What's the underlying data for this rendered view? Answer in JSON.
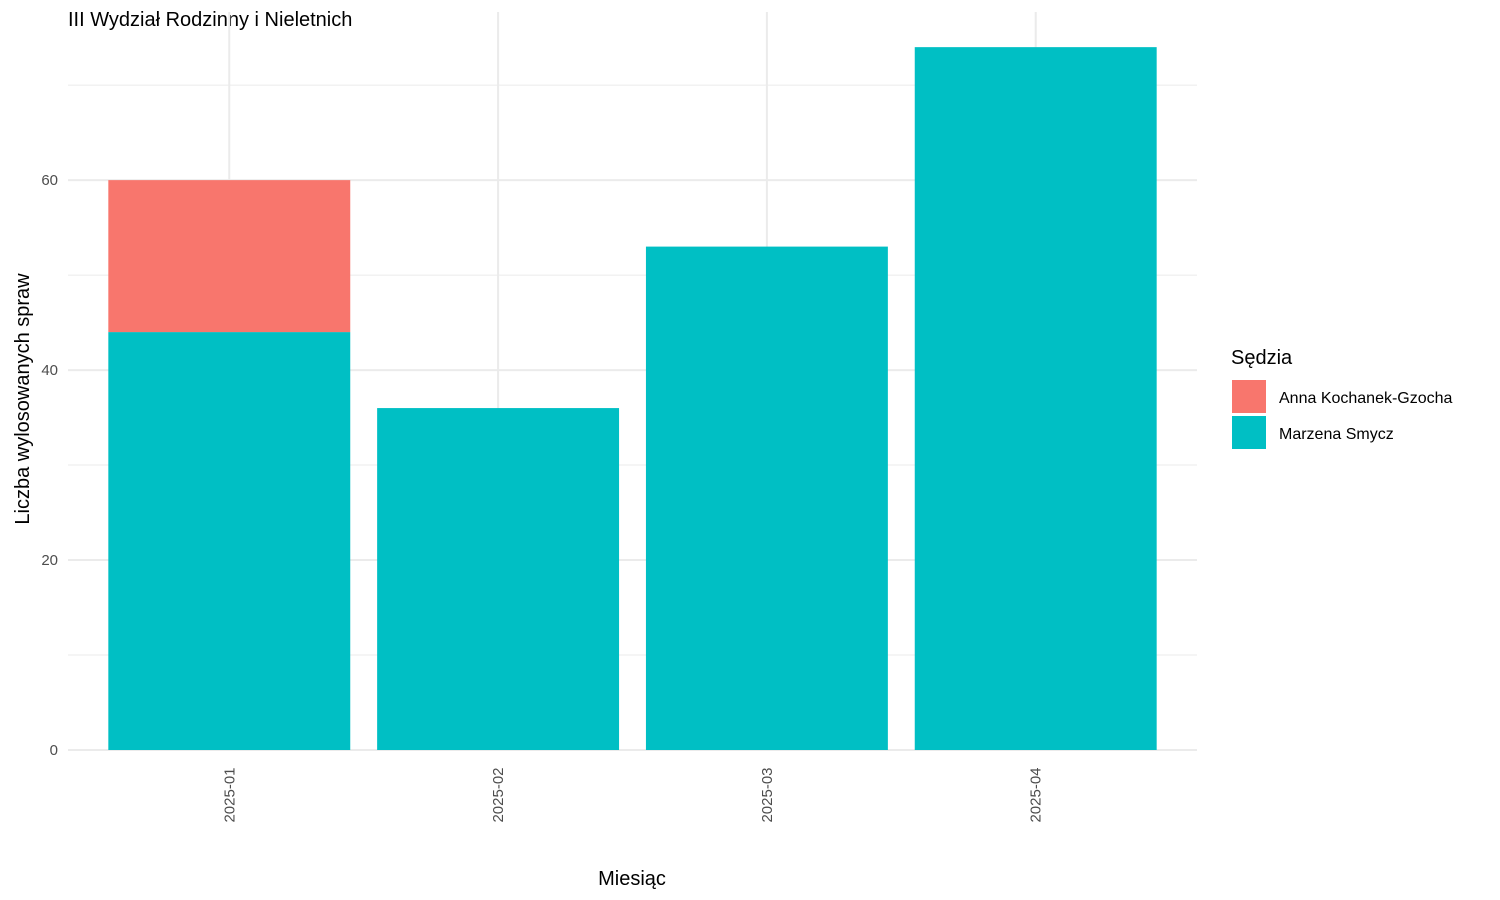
{
  "chart_data": {
    "type": "bar",
    "stacked": true,
    "title": "III Wydział Rodzinny i Nieletnich",
    "xlabel": "Miesiąc",
    "ylabel": "Liczba wylosowanych spraw",
    "categories": [
      "2025-01",
      "2025-02",
      "2025-03",
      "2025-04"
    ],
    "series": [
      {
        "name": "Marzena Smycz",
        "color": "#00BFC4",
        "values": [
          44,
          36,
          53,
          74
        ]
      },
      {
        "name": "Anna Kochanek-Gzocha",
        "color": "#F8766D",
        "values": [
          16,
          0,
          0,
          0
        ]
      }
    ],
    "ylim": [
      0,
      77.7
    ],
    "yticks": [
      0,
      20,
      40,
      60
    ],
    "grid": true,
    "legend": {
      "title": "Sędzia",
      "position": "right",
      "order": [
        "Anna Kochanek-Gzocha",
        "Marzena Smycz"
      ]
    }
  }
}
